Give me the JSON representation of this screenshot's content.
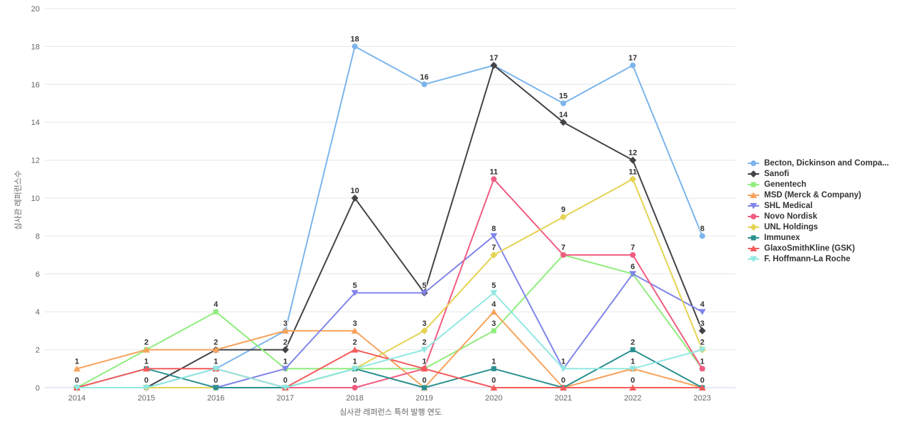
{
  "chart_data": {
    "type": "line",
    "title": "",
    "xlabel": "심사관 레퍼런스 특허 발행 연도",
    "ylabel": "심사관 레퍼런스수",
    "categories": [
      "2014",
      "2015",
      "2016",
      "2017",
      "2018",
      "2019",
      "2020",
      "2021",
      "2022",
      "2023"
    ],
    "ylim": [
      0,
      20
    ],
    "y_tick_step": 2,
    "grid": "horizontal",
    "legend_position": "right",
    "data_labels": true,
    "axis_line_color": "#ccd6eb",
    "grid_color": "#e6e6e6",
    "tick_label_color": "#666666",
    "data_label_color": "#333333",
    "series": [
      {
        "name": "Becton, Dickinson and Compa...",
        "color": "#7cb5ec",
        "marker": "circle",
        "values": [
          0,
          0,
          1,
          3,
          18,
          16,
          17,
          15,
          17,
          8
        ]
      },
      {
        "name": "Sanofi",
        "color": "#434348",
        "marker": "diamond",
        "values": [
          0,
          0,
          2,
          2,
          10,
          5,
          17,
          14,
          12,
          3
        ]
      },
      {
        "name": "Genentech",
        "color": "#90ed7d",
        "marker": "square",
        "values": [
          0,
          2,
          4,
          1,
          1,
          1,
          3,
          7,
          6,
          1
        ]
      },
      {
        "name": "MSD (Merck & Company)",
        "color": "#f7a35c",
        "marker": "triangle",
        "values": [
          1,
          2,
          2,
          3,
          3,
          0,
          4,
          0,
          1,
          0
        ]
      },
      {
        "name": "SHL Medical",
        "color": "#8085e9",
        "marker": "triangle-down",
        "values": [
          0,
          0,
          0,
          1,
          5,
          5,
          8,
          1,
          6,
          4
        ]
      },
      {
        "name": "Novo Nordisk",
        "color": "#f15c80",
        "marker": "circle",
        "values": [
          0,
          0,
          0,
          0,
          0,
          1,
          11,
          7,
          7,
          1
        ]
      },
      {
        "name": "UNL Holdings",
        "color": "#e4d354",
        "marker": "diamond",
        "values": [
          0,
          0,
          0,
          0,
          1,
          3,
          7,
          9,
          11,
          2
        ]
      },
      {
        "name": "Immunex",
        "color": "#2b908f",
        "marker": "square",
        "values": [
          0,
          1,
          0,
          0,
          1,
          0,
          1,
          0,
          2,
          0
        ]
      },
      {
        "name": "GlaxoSmithKline (GSK)",
        "color": "#f45b5b",
        "marker": "triangle",
        "values": [
          0,
          1,
          1,
          0,
          2,
          1,
          0,
          0,
          0,
          0
        ]
      },
      {
        "name": "F. Hoffmann-La Roche",
        "color": "#91e8e1",
        "marker": "triangle-down",
        "values": [
          0,
          0,
          1,
          0,
          1,
          2,
          5,
          1,
          1,
          2
        ]
      }
    ]
  }
}
